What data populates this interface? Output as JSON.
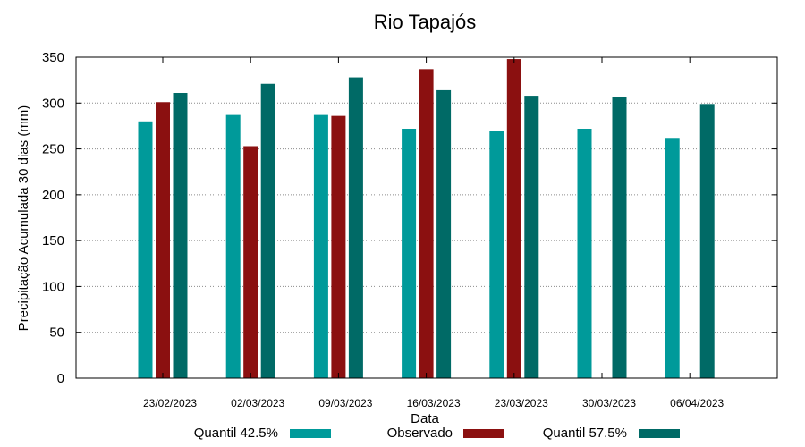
{
  "chart_data": {
    "type": "bar",
    "title": "Rio Tapajós",
    "xlabel": "Data",
    "ylabel": "Precipitação Acumulada 30 dias (mm)",
    "ylim": [
      0,
      350
    ],
    "yticks": [
      0,
      50,
      100,
      150,
      200,
      250,
      300,
      350
    ],
    "grid": "horizontal dotted",
    "legend_position": "bottom",
    "categories": [
      "23/02/2023",
      "02/03/2023",
      "09/03/2023",
      "16/03/2023",
      "23/03/2023",
      "30/03/2023",
      "06/04/2023"
    ],
    "series": [
      {
        "name": "Quantil 42.5%",
        "color": "#009a9a",
        "values": [
          280,
          287,
          287,
          272,
          270,
          272,
          262
        ]
      },
      {
        "name": "Observado",
        "color": "#8b1010",
        "values": [
          301,
          253,
          286,
          337,
          348,
          null,
          null
        ]
      },
      {
        "name": "Quantil 57.5%",
        "color": "#006a66",
        "values": [
          311,
          321,
          328,
          314,
          308,
          307,
          299
        ]
      }
    ]
  }
}
